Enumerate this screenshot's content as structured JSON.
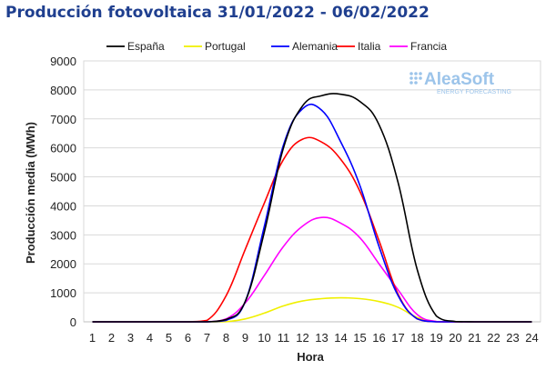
{
  "chart_data": {
    "type": "line",
    "title": "Producción fotovoltaica 31/01/2022 - 06/02/2022",
    "xlabel": "Hora",
    "ylabel": "Producción media (MWh)",
    "ylim": [
      0,
      9000
    ],
    "yticks": [
      "0",
      "1000",
      "2000",
      "3000",
      "4000",
      "5000",
      "6000",
      "7000",
      "8000",
      "9000"
    ],
    "xlim": [
      1,
      24
    ],
    "x": [
      1,
      2,
      3,
      4,
      5,
      6,
      7,
      8,
      9,
      10,
      11,
      12,
      13,
      14,
      15,
      16,
      17,
      18,
      19,
      20,
      21,
      22,
      23,
      24
    ],
    "grid": true,
    "legend_position": "top",
    "series": [
      {
        "name": "España",
        "color": "#000000",
        "values": [
          0,
          0,
          0,
          0,
          0,
          0,
          0,
          80,
          700,
          3100,
          6000,
          7450,
          7800,
          7850,
          7600,
          6800,
          4800,
          1800,
          200,
          10,
          0,
          0,
          0,
          0
        ]
      },
      {
        "name": "Portugal",
        "color": "#f0f000",
        "values": [
          0,
          0,
          0,
          0,
          0,
          0,
          0,
          5,
          100,
          300,
          550,
          720,
          800,
          830,
          800,
          700,
          500,
          150,
          10,
          0,
          0,
          0,
          0,
          0
        ]
      },
      {
        "name": "Alemania",
        "color": "#0000ff",
        "values": [
          0,
          0,
          0,
          0,
          0,
          0,
          0,
          50,
          700,
          3300,
          6100,
          7350,
          7300,
          6200,
          4700,
          2600,
          900,
          100,
          0,
          0,
          0,
          0,
          0,
          0
        ]
      },
      {
        "name": "Italia",
        "color": "#ff0000",
        "values": [
          0,
          0,
          0,
          0,
          0,
          0,
          50,
          900,
          2500,
          4100,
          5600,
          6300,
          6200,
          5600,
          4500,
          2800,
          950,
          100,
          0,
          0,
          0,
          0,
          0,
          0
        ]
      },
      {
        "name": "Francia",
        "color": "#ff00ff",
        "values": [
          0,
          0,
          0,
          0,
          0,
          0,
          0,
          100,
          650,
          1600,
          2600,
          3300,
          3600,
          3400,
          2900,
          2000,
          1100,
          250,
          10,
          0,
          0,
          0,
          0,
          0
        ]
      }
    ]
  },
  "watermark": {
    "main": "AleaSoft",
    "sub": "ENERGY FORECASTING"
  }
}
